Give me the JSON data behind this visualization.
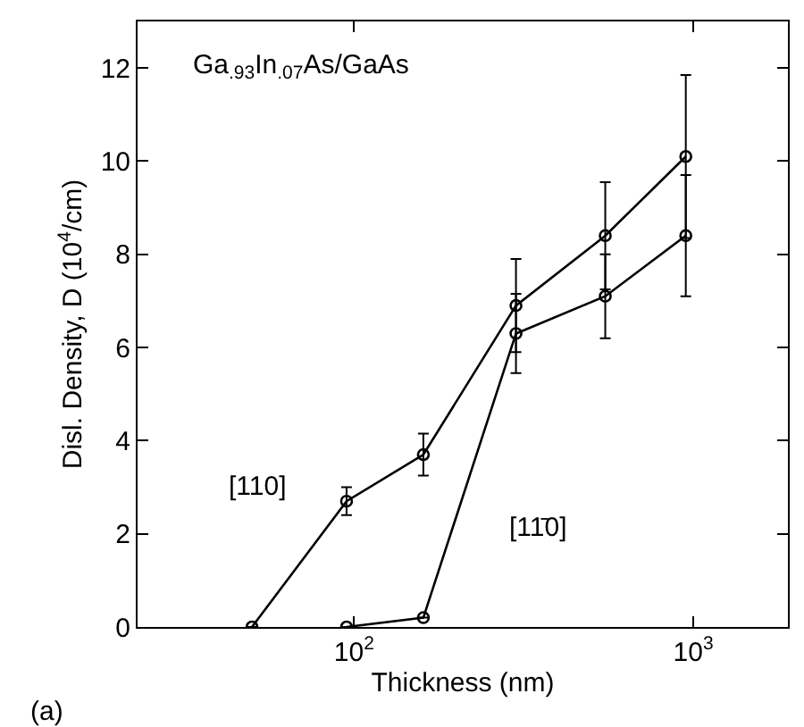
{
  "chart_data": {
    "type": "line",
    "title": "Ga$_{.93}$In$_{.07}$As/GaAs",
    "xlabel": "Thickness (nm)",
    "ylabel": "Disl. Density, D (10$^{4}$/cm)",
    "log": "x",
    "xlim": [
      23,
      1900
    ],
    "xticks": [
      {
        "value": 100,
        "label": "10$^{2}$"
      },
      {
        "value": 1000,
        "label": "10$^{3}$"
      }
    ],
    "ylim": [
      0,
      13
    ],
    "yticks": [
      0,
      2,
      4,
      6,
      8,
      10,
      12
    ],
    "grid": false,
    "legend": false,
    "marker": "circle",
    "line_style": "solid",
    "series": [
      {
        "name": "[110]",
        "color": "#000000",
        "x": [
          50,
          95,
          160,
          300,
          550,
          950
        ],
        "values": [
          0,
          2.7,
          3.7,
          6.9,
          8.4,
          10.1
        ],
        "errors": [
          null,
          0.3,
          0.45,
          1.0,
          1.15,
          1.75
        ]
      },
      {
        "name": "[11̄0]",
        "color": "#000000",
        "x": [
          95,
          160,
          300,
          550,
          950
        ],
        "values": [
          0,
          0.2,
          6.3,
          7.1,
          8.4
        ],
        "errors": [
          null,
          null,
          0.85,
          0.9,
          1.3
        ]
      }
    ],
    "annotations": [
      "(a)"
    ]
  }
}
